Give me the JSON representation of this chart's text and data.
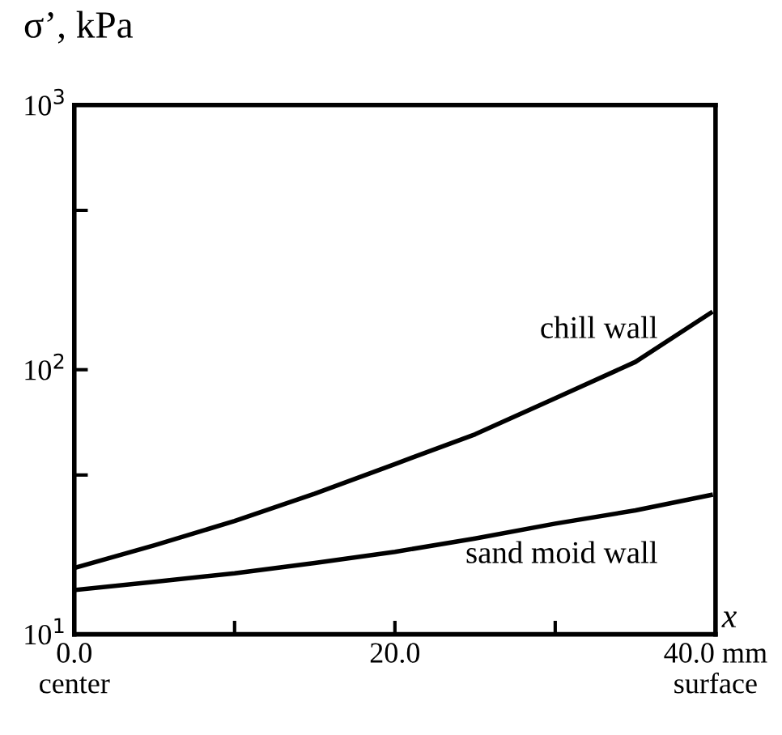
{
  "chart_data": {
    "type": "line",
    "xlabel": "x",
    "ylabel": "σ’, kPa",
    "log": "y",
    "xlim": [
      0,
      40
    ],
    "xticks": [
      {
        "value": 0,
        "label": "0.0\ncenter"
      },
      {
        "value": 10,
        "label": null
      },
      {
        "value": 20,
        "label": "20.0"
      },
      {
        "value": 30,
        "label": null
      },
      {
        "value": 40,
        "label": "40.0 mm\nsurface"
      }
    ],
    "ylim": [
      10,
      1000
    ],
    "yticks": [
      {
        "value": 10,
        "label": "10$^{1}$"
      },
      {
        "value": 40,
        "label": null
      },
      {
        "value": 100,
        "label": "10$^{2}$"
      },
      {
        "value": 400,
        "label": null
      },
      {
        "value": 1000,
        "label": "10$^{3}$"
      }
    ],
    "grid": false,
    "legend": false,
    "marker": "none",
    "line_style": "solid",
    "series": [
      {
        "name": "chill wall",
        "color": "#000000",
        "x": [
          0,
          5,
          10,
          15,
          20,
          25,
          30,
          35,
          39.7
        ],
        "values": [
          17.8,
          21.7,
          26.8,
          34,
          44,
          57,
          78,
          107,
          164
        ]
      },
      {
        "name": "sand moid wall",
        "color": "#000000",
        "x": [
          0,
          5,
          10,
          15,
          20,
          25,
          30,
          35,
          39.7
        ],
        "values": [
          14.7,
          15.8,
          17.0,
          18.6,
          20.5,
          23.0,
          26.2,
          29.4,
          33.6
        ]
      }
    ]
  }
}
